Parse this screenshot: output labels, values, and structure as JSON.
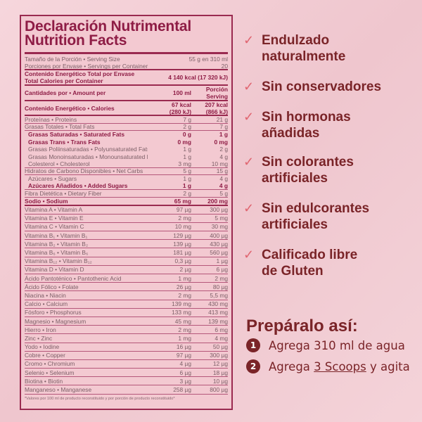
{
  "nutrition": {
    "title_es": "Declaración Nutrimental",
    "title_en": "Nutrition Facts",
    "serving_size": {
      "label": "Tamaño de la Porción • Serving Size",
      "value": "55 g en 310 ml"
    },
    "servings": {
      "label": "Porciones por Envase • Servings per Container",
      "value": "20"
    },
    "energy_total": {
      "label1": "Contenido Energético Total por Envase",
      "label2": "Total Calories per Container",
      "value": "4 140 kcal (17 320 kJ)"
    },
    "header": {
      "label": "Cantidades por • Amount per",
      "col1": "100 ml",
      "col2a": "Porción",
      "col2b": "Serving"
    },
    "calories": {
      "label": "Contenido Energético • Calories",
      "c1a": "67 kcal",
      "c1b": "(280 kJ)",
      "c2a": "207 kcal",
      "c2b": "(866 kJ)"
    },
    "macros": [
      {
        "label": "Proteínas • Proteins",
        "c1": "7 g",
        "c2": "21 g",
        "style": "line"
      },
      {
        "label": "Grasas Totales • Total Fats",
        "c1": "2 g",
        "c2": "7 g",
        "style": "noline"
      },
      {
        "label": "Grasas Saturadas • Saturated Fats",
        "c1": "0 g",
        "c2": "1 g",
        "style": "bold-ind"
      },
      {
        "label": "Grasas Trans • Trans Fats",
        "c1": "0 mg",
        "c2": "0 mg",
        "style": "bold-ind"
      },
      {
        "label": "Grasas Poliinsaturadas • Polyunsaturated Fats",
        "c1": "1 g",
        "c2": "2 g",
        "style": "ind"
      },
      {
        "label": "Grasas Monoinsaturadas • Monounsaturated Fats",
        "c1": "1 g",
        "c2": "4 g",
        "style": "ind"
      },
      {
        "label": "Colesterol • Cholesterol",
        "c1": "3 mg",
        "c2": "10 mg",
        "style": "ind-line"
      },
      {
        "label": "Hidratos de Carbono Disponibles • Net Carbs",
        "c1": "5 g",
        "c2": "15 g",
        "style": "noline"
      },
      {
        "label": "Azúcares • Sugars",
        "c1": "1 g",
        "c2": "4 g",
        "style": "ind"
      },
      {
        "label": "Azúcares Añadidos • Added Sugars",
        "c1": "1 g",
        "c2": "4 g",
        "style": "bold-ind-line"
      },
      {
        "label": "Fibra Dietética • Dietary Fiber",
        "c1": "2 g",
        "c2": "5 g",
        "style": "line"
      },
      {
        "label": "Sodio • Sodium",
        "c1": "65 mg",
        "c2": "200 mg",
        "style": "bold-thick"
      }
    ],
    "micros": [
      {
        "label": "Vitamina A • Vitamin A",
        "c1": "97 µg",
        "c2": "300 µg"
      },
      {
        "label": "Vitamina E • Vitamin E",
        "c1": "2 mg",
        "c2": "5 mg"
      },
      {
        "label": "Vitamina C • Vitamin C",
        "c1": "10 mg",
        "c2": "30 mg"
      },
      {
        "label": "Vitamina B₁ • Vitamin B₁",
        "c1": "129 µg",
        "c2": "400 µg"
      },
      {
        "label": "Vitamina B₂ • Vitamin B₂",
        "c1": "139 µg",
        "c2": "430 µg"
      },
      {
        "label": "Vitamina B₆ • Vitamin B₆",
        "c1": "181 µg",
        "c2": "560 µg"
      },
      {
        "label": "Vitamina B₁₂ • Vitamin B₁₂",
        "c1": "0,3 µg",
        "c2": "1 µg"
      },
      {
        "label": "Vitamina D • Vitamin D",
        "c1": "2 µg",
        "c2": "6 µg"
      },
      {
        "label": "Ácido Pantoténico • Pantothenic Acid",
        "c1": "1 mg",
        "c2": "2 mg"
      },
      {
        "label": "Ácido Fólico • Folate",
        "c1": "26 µg",
        "c2": "80 µg"
      },
      {
        "label": "Niacina • Niacin",
        "c1": "2 mg",
        "c2": "5,5 mg"
      },
      {
        "label": "Calcio • Calcium",
        "c1": "139 mg",
        "c2": "430 mg"
      },
      {
        "label": "Fósforo • Phosphorus",
        "c1": "133 mg",
        "c2": "413 mg"
      },
      {
        "label": "Magnesio • Magnesium",
        "c1": "45 mg",
        "c2": "139 mg"
      },
      {
        "label": "Hierro • Iron",
        "c1": "2 mg",
        "c2": "6 mg"
      },
      {
        "label": "Zinc • Zinc",
        "c1": "1 mg",
        "c2": "4 mg"
      },
      {
        "label": "Yodo • Iodine",
        "c1": "16 µg",
        "c2": "50 µg"
      },
      {
        "label": "Cobre • Copper",
        "c1": "97 µg",
        "c2": "300 µg"
      },
      {
        "label": "Cromo • Chromium",
        "c1": "4 µg",
        "c2": "12 µg"
      },
      {
        "label": "Selenio • Selenium",
        "c1": "6 µg",
        "c2": "18 µg"
      },
      {
        "label": "Biotina • Biotin",
        "c1": "3 µg",
        "c2": "10 µg"
      },
      {
        "label": "Manganeso • Manganese",
        "c1": "258 µg",
        "c2": "800 µg"
      }
    ],
    "footnote": "*Valores por 100 ml de producto reconstituido y por porción de producto reconstituido*"
  },
  "features": [
    {
      "icon": "check-icon",
      "lines": [
        "Endulzado",
        "naturalmente"
      ]
    },
    {
      "icon": "check-icon",
      "lines": [
        "Sin conservadores"
      ]
    },
    {
      "icon": "check-icon",
      "lines": [
        "Sin hormonas",
        "añadidas"
      ]
    },
    {
      "icon": "check-icon",
      "lines": [
        "Sin colorantes",
        "artificiales"
      ]
    },
    {
      "icon": "check-icon",
      "lines": [
        "Sin edulcorantes",
        "artificiales"
      ]
    },
    {
      "icon": "check-icon",
      "lines": [
        "Calificado libre",
        "de  Gluten"
      ]
    }
  ],
  "preparation": {
    "title": "Prepáralo así:",
    "steps": [
      {
        "num": "1",
        "pre": "Agrega 310 ml de agua",
        "link": "",
        "post": ""
      },
      {
        "num": "2",
        "pre": "Agrega ",
        "link": "3 Scoops",
        "post": " y agita"
      }
    ]
  },
  "colors": {
    "accent": "#8e1c45",
    "text_right": "#7a2428",
    "check": "#e06570",
    "background": "#f2cdd3"
  }
}
